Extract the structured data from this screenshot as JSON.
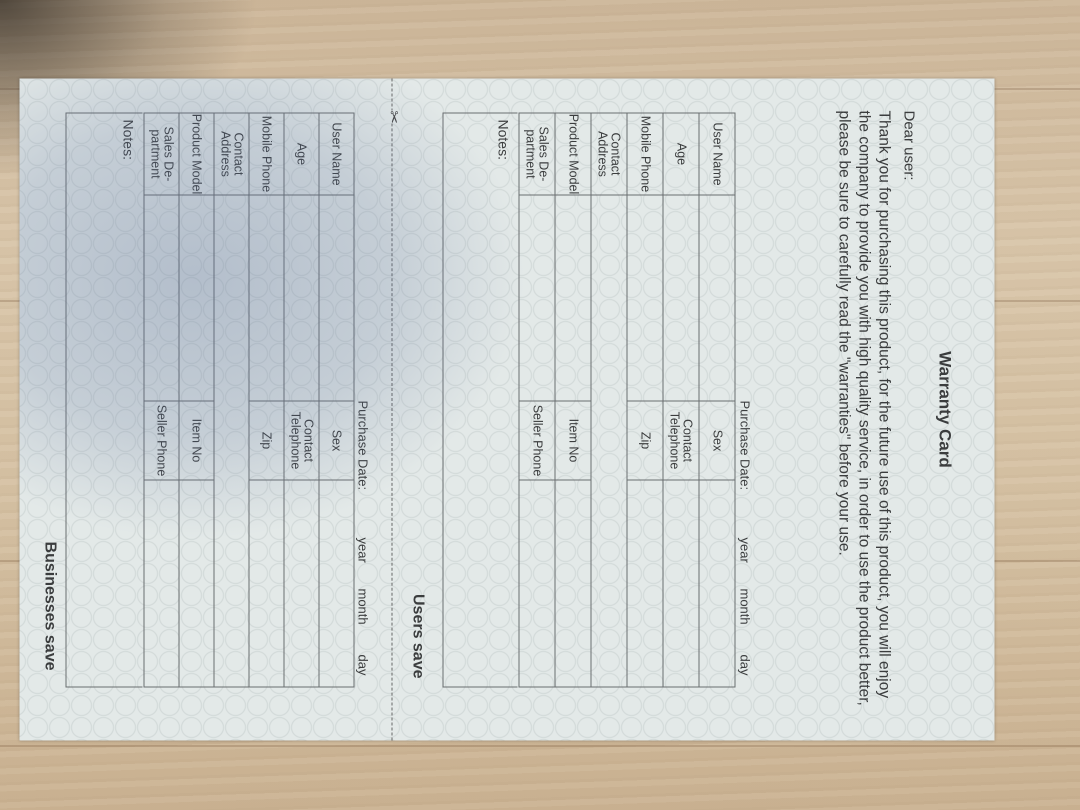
{
  "card": {
    "title": "Warranty Card",
    "greeting": "Dear user:",
    "message": "Thank you for purchasing this product, for the future use of this product, you will enjoy the company to provide you with high quality service, in order to use the product better, please be sure to carefully read the \"warranties\" before your use.",
    "purchase_date": {
      "label": "Purchase Date:",
      "year": "year",
      "month": "month",
      "day": "day"
    },
    "rows": [
      {
        "label": "User Name",
        "label2": "Sex"
      },
      {
        "label": "Age",
        "label2": "Contact Telephone"
      },
      {
        "label": "Mobile Phone",
        "label2": "Zip"
      },
      {
        "label": "Contact Address",
        "label2": ""
      },
      {
        "label": "Product Model",
        "label2": "Item No"
      },
      {
        "label": "Sales De-partment",
        "label2": "Seller Phone"
      }
    ],
    "notes_label": "Notes:",
    "users_save": "Users save",
    "businesses_save": "Businesses save",
    "scissors_icon": "scissors-icon"
  }
}
